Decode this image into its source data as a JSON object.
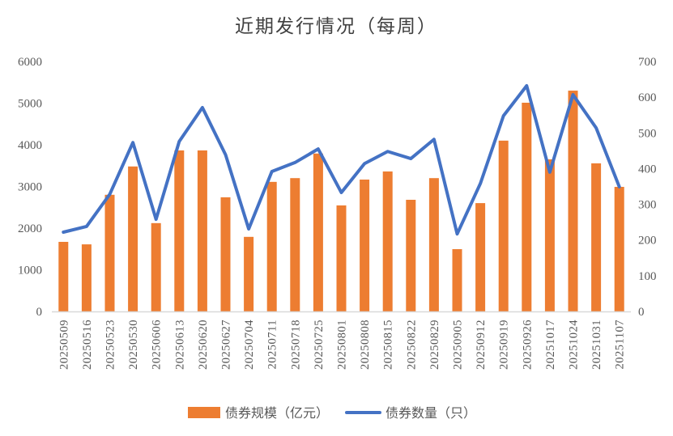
{
  "chart_data": {
    "type": "bar+line",
    "title": "近期发行情况（每周）",
    "categories": [
      "20250509",
      "20250516",
      "20250523",
      "20250530",
      "20250606",
      "20250613",
      "20250620",
      "20250627",
      "20250704",
      "20250711",
      "20250718",
      "20250725",
      "20250801",
      "20250808",
      "20250815",
      "20250822",
      "20250829",
      "20250905",
      "20250912",
      "20250919",
      "20250926",
      "20251017",
      "20251024",
      "20251031",
      "20251107"
    ],
    "series": [
      {
        "name": "债券规模（亿元）",
        "type": "bar",
        "axis": "left",
        "color": "#ED7D31",
        "values": [
          1670,
          1610,
          2800,
          3480,
          2120,
          3865,
          3865,
          2740,
          1790,
          3110,
          3200,
          3790,
          2545,
          3165,
          3360,
          2680,
          3200,
          1495,
          2600,
          4100,
          5010,
          3650,
          5300,
          3555,
          2990
        ]
      },
      {
        "name": "债券数量（只）",
        "type": "line",
        "axis": "right",
        "color": "#4472C4",
        "values": [
          222,
          238,
          328,
          473,
          258,
          476,
          571,
          439,
          231,
          392,
          417,
          455,
          333,
          414,
          448,
          428,
          482,
          217,
          358,
          548,
          632,
          390,
          607,
          514,
          349
        ]
      }
    ],
    "y_left": {
      "range": [
        0,
        6000
      ],
      "ticks": [
        "0",
        "1000",
        "2000",
        "3000",
        "4000",
        "5000",
        "6000"
      ]
    },
    "y_right": {
      "range": [
        0,
        700
      ],
      "ticks": [
        "0",
        "100",
        "200",
        "300",
        "400",
        "500",
        "600",
        "700"
      ]
    },
    "grid": false,
    "legend": "bottom"
  }
}
